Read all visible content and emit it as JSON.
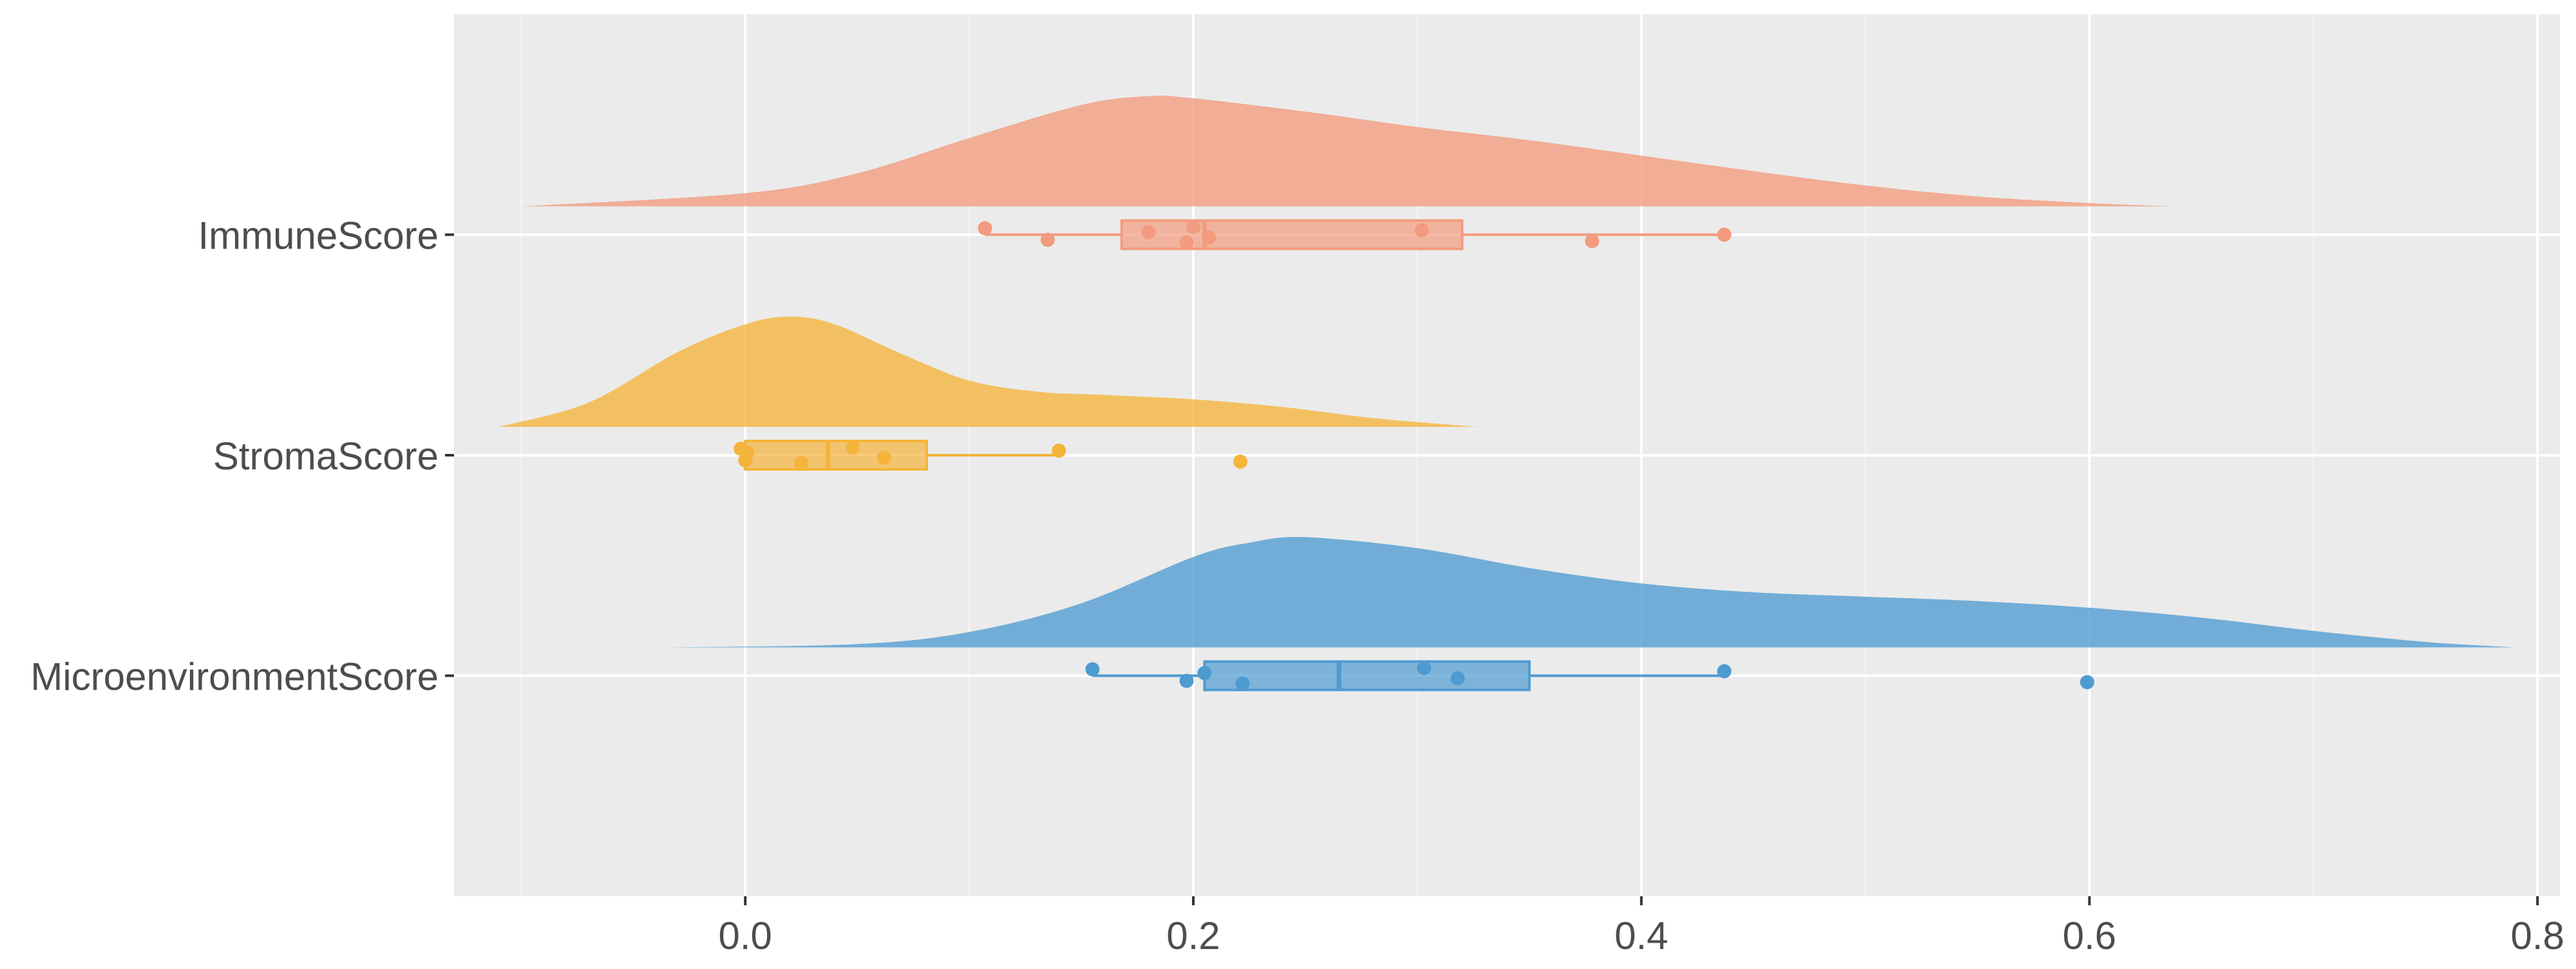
{
  "chart_data": {
    "type": "raincloud",
    "orientation": "horizontal",
    "xlim": [
      -0.13,
      0.81
    ],
    "x_ticks": [
      0.0,
      0.2,
      0.4,
      0.6,
      0.8
    ],
    "x_tick_labels": [
      "0.0",
      "0.2",
      "0.4",
      "0.6",
      "0.8"
    ],
    "grid": true,
    "background": "#ebebeb",
    "categories": [
      "MicroenvironmentScore",
      "StromaScore",
      "ImmuneScore"
    ],
    "series": [
      {
        "name": "MicroenvironmentScore",
        "color": "#4e9bd1",
        "density": {
          "x": [
            -0.035,
            0.05,
            0.1,
            0.15,
            0.2,
            0.225,
            0.25,
            0.3,
            0.35,
            0.4,
            0.45,
            0.5,
            0.55,
            0.6,
            0.65,
            0.7,
            0.75,
            0.79
          ],
          "y": [
            0.0,
            0.03,
            0.14,
            0.4,
            0.82,
            0.95,
            1.0,
            0.9,
            0.72,
            0.58,
            0.5,
            0.46,
            0.42,
            0.36,
            0.27,
            0.15,
            0.05,
            0.0
          ]
        },
        "box": {
          "q1": 0.205,
          "median": 0.265,
          "q3": 0.35,
          "whisker_low": 0.155,
          "whisker_high": 0.437
        },
        "points": [
          0.155,
          0.197,
          0.205,
          0.222,
          0.303,
          0.318,
          0.437,
          0.599
        ]
      },
      {
        "name": "StromaScore",
        "color": "#f5b43a",
        "density": {
          "x": [
            -0.11,
            -0.07,
            -0.03,
            0.0,
            0.02,
            0.04,
            0.07,
            0.1,
            0.13,
            0.16,
            0.2,
            0.24,
            0.28,
            0.327
          ],
          "y": [
            0.0,
            0.22,
            0.68,
            0.93,
            1.0,
            0.93,
            0.66,
            0.42,
            0.32,
            0.29,
            0.25,
            0.18,
            0.08,
            0.0
          ]
        },
        "box": {
          "q1": 0.0,
          "median": 0.037,
          "q3": 0.081,
          "whisker_low": 0.0,
          "whisker_high": 0.14
        },
        "points": [
          -0.002,
          0.0,
          0.001,
          0.025,
          0.048,
          0.062,
          0.14,
          0.221
        ]
      },
      {
        "name": "ImmuneScore",
        "color": "#f29b7e",
        "density": {
          "x": [
            -0.1,
            0.0,
            0.05,
            0.1,
            0.15,
            0.18,
            0.2,
            0.25,
            0.3,
            0.35,
            0.4,
            0.45,
            0.5,
            0.55,
            0.6,
            0.638
          ],
          "y": [
            0.0,
            0.12,
            0.3,
            0.62,
            0.92,
            1.0,
            0.98,
            0.86,
            0.72,
            0.6,
            0.46,
            0.32,
            0.19,
            0.09,
            0.03,
            0.0
          ]
        },
        "box": {
          "q1": 0.168,
          "median": 0.205,
          "q3": 0.32,
          "whisker_low": 0.107,
          "whisker_high": 0.437
        },
        "points": [
          0.107,
          0.135,
          0.18,
          0.197,
          0.2,
          0.207,
          0.302,
          0.378,
          0.437
        ]
      }
    ]
  }
}
